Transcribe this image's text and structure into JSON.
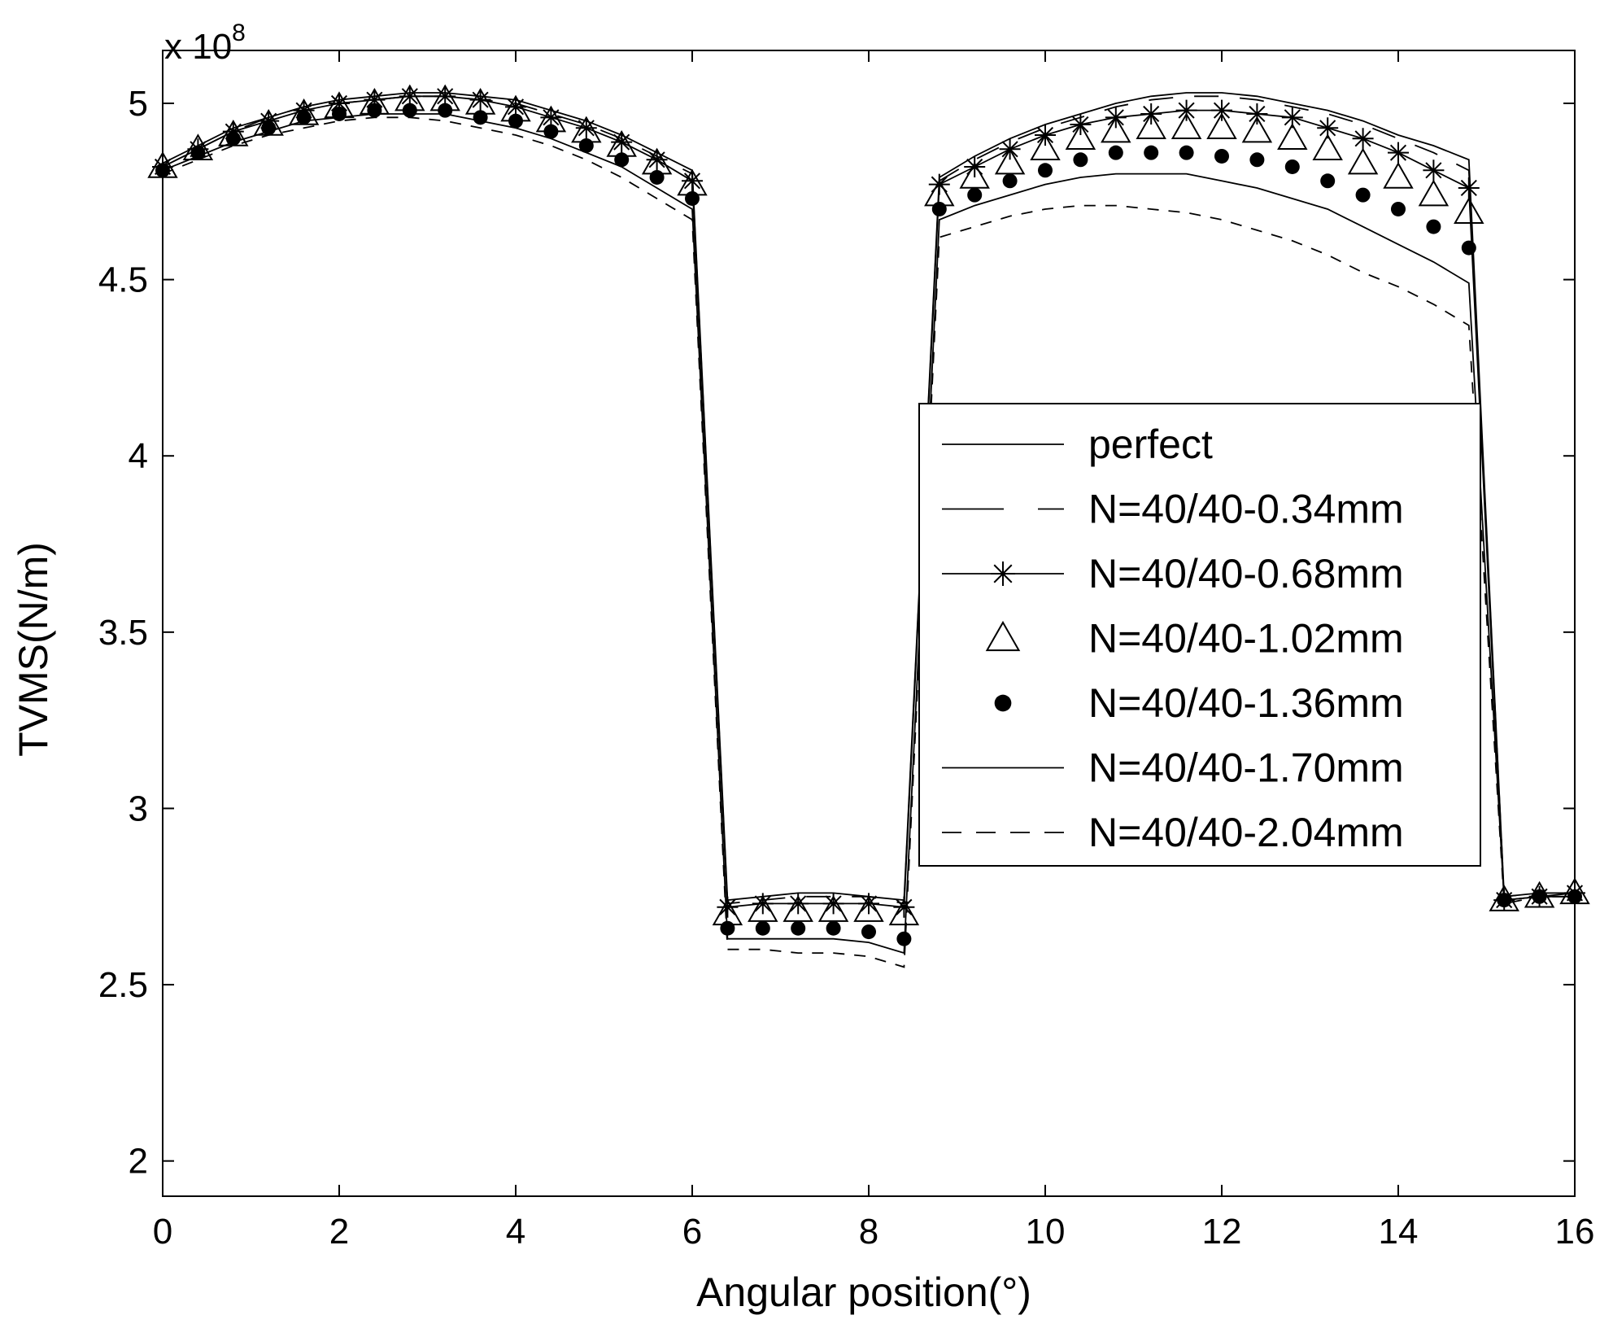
{
  "chart_data": {
    "type": "line",
    "xlabel": "Angular position(°)",
    "ylabel": "TVMS(N/m)",
    "y_multiplier_base": "x 10",
    "y_multiplier_exponent": "8",
    "xlim": [
      0,
      16
    ],
    "ylim": [
      1.9,
      5.15
    ],
    "x_ticks": [
      0,
      2,
      4,
      6,
      8,
      10,
      12,
      14,
      16
    ],
    "y_ticks": [
      2,
      2.5,
      3,
      3.5,
      4,
      4.5,
      5
    ],
    "x_tick_labels": [
      "0",
      "2",
      "4",
      "6",
      "8",
      "10",
      "12",
      "14",
      "16"
    ],
    "y_tick_labels": [
      "2",
      "2.5",
      "3",
      "3.5",
      "4",
      "4.5",
      "5"
    ],
    "grid": false,
    "legend_position": "right",
    "series": [
      {
        "name": "perfect",
        "style": "solid",
        "marker": "none",
        "x": [
          0,
          0.4,
          0.8,
          1.2,
          1.6,
          2.0,
          2.4,
          2.8,
          3.2,
          3.6,
          4.0,
          4.4,
          4.8,
          5.2,
          5.6,
          6.0,
          6.4,
          6.8,
          7.2,
          7.6,
          8.0,
          8.4,
          8.8,
          9.2,
          9.6,
          10.0,
          10.4,
          10.8,
          11.2,
          11.6,
          12.0,
          12.4,
          12.8,
          13.2,
          13.6,
          14.0,
          14.4,
          14.8,
          15.2,
          15.6,
          16.0
        ],
        "y": [
          4.83,
          4.88,
          4.93,
          4.96,
          4.99,
          5.01,
          5.02,
          5.03,
          5.03,
          5.02,
          5.01,
          4.98,
          4.95,
          4.91,
          4.86,
          4.81,
          2.74,
          2.75,
          2.76,
          2.76,
          2.75,
          2.74,
          4.79,
          4.85,
          4.9,
          4.94,
          4.97,
          5.0,
          5.02,
          5.03,
          5.03,
          5.02,
          5.0,
          4.98,
          4.95,
          4.91,
          4.88,
          4.84,
          2.75,
          2.76,
          2.76
        ]
      },
      {
        "name": "N=40/40-0.34mm",
        "style": "longdash",
        "marker": "none",
        "x": [
          0,
          0.4,
          0.8,
          1.2,
          1.6,
          2.0,
          2.4,
          2.8,
          3.2,
          3.6,
          4.0,
          4.4,
          4.8,
          5.2,
          5.6,
          6.0,
          6.4,
          6.8,
          7.2,
          7.6,
          8.0,
          8.4,
          8.8,
          9.2,
          9.6,
          10.0,
          10.4,
          10.8,
          11.2,
          11.6,
          12.0,
          12.4,
          12.8,
          13.2,
          13.6,
          14.0,
          14.4,
          14.8,
          15.2,
          15.6,
          16.0
        ],
        "y": [
          4.82,
          4.87,
          4.92,
          4.96,
          4.99,
          5.0,
          5.01,
          5.02,
          5.02,
          5.01,
          5.0,
          4.97,
          4.94,
          4.9,
          4.85,
          4.8,
          2.73,
          2.74,
          2.75,
          2.75,
          2.75,
          2.73,
          4.78,
          4.84,
          4.89,
          4.93,
          4.96,
          4.99,
          5.01,
          5.02,
          5.02,
          5.01,
          4.99,
          4.97,
          4.94,
          4.9,
          4.86,
          4.81,
          2.75,
          2.76,
          2.76
        ]
      },
      {
        "name": "N=40/40-0.68mm",
        "style": "solid",
        "marker": "star",
        "x": [
          0,
          0.4,
          0.8,
          1.2,
          1.6,
          2.0,
          2.4,
          2.8,
          3.2,
          3.6,
          4.0,
          4.4,
          4.8,
          5.2,
          5.6,
          6.0,
          6.4,
          6.8,
          7.2,
          7.6,
          8.0,
          8.4,
          8.8,
          9.2,
          9.6,
          10.0,
          10.4,
          10.8,
          11.2,
          11.6,
          12.0,
          12.4,
          12.8,
          13.2,
          13.6,
          14.0,
          14.4,
          14.8,
          15.2,
          15.6,
          16.0
        ],
        "y": [
          4.82,
          4.87,
          4.92,
          4.95,
          4.98,
          5.0,
          5.01,
          5.02,
          5.02,
          5.01,
          4.99,
          4.96,
          4.93,
          4.89,
          4.84,
          4.78,
          2.72,
          2.73,
          2.73,
          2.73,
          2.73,
          2.72,
          4.77,
          4.82,
          4.87,
          4.91,
          4.94,
          4.96,
          4.97,
          4.98,
          4.98,
          4.97,
          4.96,
          4.93,
          4.9,
          4.86,
          4.81,
          4.76,
          2.74,
          2.75,
          2.76
        ]
      },
      {
        "name": "N=40/40-1.02mm",
        "style": "none",
        "marker": "triangle",
        "x": [
          0,
          0.4,
          0.8,
          1.2,
          1.6,
          2.0,
          2.4,
          2.8,
          3.2,
          3.6,
          4.0,
          4.4,
          4.8,
          5.2,
          5.6,
          6.0,
          6.4,
          6.8,
          7.2,
          7.6,
          8.0,
          8.4,
          8.8,
          9.2,
          9.6,
          10.0,
          10.4,
          10.8,
          11.2,
          11.6,
          12.0,
          12.4,
          12.8,
          13.2,
          13.6,
          14.0,
          14.4,
          14.8,
          15.2,
          15.6,
          16.0
        ],
        "y": [
          4.82,
          4.87,
          4.91,
          4.94,
          4.97,
          4.99,
          5.0,
          5.01,
          5.01,
          5.0,
          4.98,
          4.95,
          4.92,
          4.88,
          4.83,
          4.77,
          2.7,
          2.71,
          2.71,
          2.71,
          2.71,
          2.7,
          4.74,
          4.79,
          4.83,
          4.87,
          4.9,
          4.92,
          4.93,
          4.93,
          4.93,
          4.92,
          4.9,
          4.87,
          4.83,
          4.79,
          4.74,
          4.69,
          2.74,
          2.75,
          2.76
        ]
      },
      {
        "name": "N=40/40-1.36mm",
        "style": "none",
        "marker": "dot",
        "x": [
          0,
          0.4,
          0.8,
          1.2,
          1.6,
          2.0,
          2.4,
          2.8,
          3.2,
          3.6,
          4.0,
          4.4,
          4.8,
          5.2,
          5.6,
          6.0,
          6.4,
          6.8,
          7.2,
          7.6,
          8.0,
          8.4,
          8.8,
          9.2,
          9.6,
          10.0,
          10.4,
          10.8,
          11.2,
          11.6,
          12.0,
          12.4,
          12.8,
          13.2,
          13.6,
          14.0,
          14.4,
          14.8,
          15.2,
          15.6,
          16.0
        ],
        "y": [
          4.81,
          4.86,
          4.9,
          4.93,
          4.96,
          4.97,
          4.98,
          4.98,
          4.98,
          4.96,
          4.95,
          4.92,
          4.88,
          4.84,
          4.79,
          4.73,
          2.66,
          2.66,
          2.66,
          2.66,
          2.65,
          2.63,
          4.7,
          4.74,
          4.78,
          4.81,
          4.84,
          4.86,
          4.86,
          4.86,
          4.85,
          4.84,
          4.82,
          4.78,
          4.74,
          4.7,
          4.65,
          4.59,
          2.74,
          2.75,
          2.75
        ]
      },
      {
        "name": "N=40/40-1.70mm",
        "style": "solid",
        "marker": "none",
        "x": [
          0,
          0.4,
          0.8,
          1.2,
          1.6,
          2.0,
          2.4,
          2.8,
          3.2,
          3.6,
          4.0,
          4.4,
          4.8,
          5.2,
          5.6,
          6.0,
          6.4,
          6.8,
          7.2,
          7.6,
          8.0,
          8.4,
          8.8,
          9.2,
          9.6,
          10.0,
          10.4,
          10.8,
          11.2,
          11.6,
          12.0,
          12.4,
          12.8,
          13.2,
          13.6,
          14.0,
          14.4,
          14.8,
          15.2,
          15.6,
          16.0
        ],
        "y": [
          4.81,
          4.85,
          4.89,
          4.92,
          4.95,
          4.96,
          4.97,
          4.97,
          4.97,
          4.95,
          4.93,
          4.9,
          4.86,
          4.82,
          4.76,
          4.7,
          2.63,
          2.63,
          2.63,
          2.63,
          2.62,
          2.59,
          4.67,
          4.71,
          4.74,
          4.77,
          4.79,
          4.8,
          4.8,
          4.8,
          4.78,
          4.76,
          4.73,
          4.7,
          4.65,
          4.6,
          4.55,
          4.49,
          2.74,
          2.75,
          2.75
        ]
      },
      {
        "name": "N=40/40-2.04mm",
        "style": "dash",
        "marker": "none",
        "x": [
          0,
          0.4,
          0.8,
          1.2,
          1.6,
          2.0,
          2.4,
          2.8,
          3.2,
          3.6,
          4.0,
          4.4,
          4.8,
          5.2,
          5.6,
          6.0,
          6.4,
          6.8,
          7.2,
          7.6,
          8.0,
          8.4,
          8.8,
          9.2,
          9.6,
          10.0,
          10.4,
          10.8,
          11.2,
          11.6,
          12.0,
          12.4,
          12.8,
          13.2,
          13.6,
          14.0,
          14.4,
          14.8,
          15.2,
          15.6,
          16.0
        ],
        "y": [
          4.8,
          4.84,
          4.88,
          4.91,
          4.93,
          4.95,
          4.96,
          4.96,
          4.95,
          4.93,
          4.91,
          4.88,
          4.84,
          4.79,
          4.73,
          4.67,
          2.6,
          2.6,
          2.59,
          2.59,
          2.58,
          2.55,
          4.62,
          4.65,
          4.68,
          4.7,
          4.71,
          4.71,
          4.7,
          4.69,
          4.67,
          4.64,
          4.61,
          4.57,
          4.52,
          4.48,
          4.43,
          4.37,
          2.73,
          2.75,
          2.75
        ]
      }
    ]
  }
}
